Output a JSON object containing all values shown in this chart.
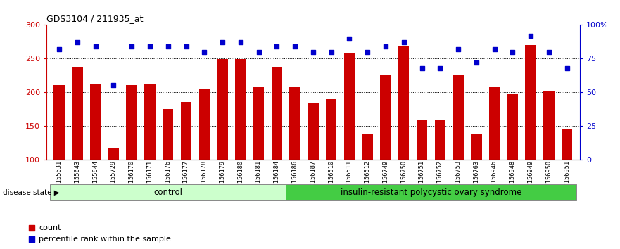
{
  "title": "GDS3104 / 211935_at",
  "samples": [
    "GSM155631",
    "GSM155643",
    "GSM155644",
    "GSM155729",
    "GSM156170",
    "GSM156171",
    "GSM156176",
    "GSM156177",
    "GSM156178",
    "GSM156179",
    "GSM156180",
    "GSM156181",
    "GSM156184",
    "GSM156186",
    "GSM156187",
    "GSM156510",
    "GSM156511",
    "GSM156512",
    "GSM156749",
    "GSM156750",
    "GSM156751",
    "GSM156752",
    "GSM156753",
    "GSM156763",
    "GSM156946",
    "GSM156948",
    "GSM156949",
    "GSM156950",
    "GSM156951"
  ],
  "counts": [
    210,
    238,
    211,
    117,
    210,
    213,
    175,
    185,
    205,
    249,
    249,
    208,
    238,
    207,
    184,
    190,
    257,
    138,
    225,
    269,
    158,
    159,
    225,
    137,
    207,
    198,
    270,
    202,
    145
  ],
  "percentiles": [
    82,
    87,
    84,
    55,
    84,
    84,
    84,
    84,
    80,
    87,
    87,
    80,
    84,
    84,
    80,
    80,
    90,
    80,
    84,
    87,
    68,
    68,
    82,
    72,
    82,
    80,
    92,
    80,
    68
  ],
  "n_control": 13,
  "ylim_left": [
    100,
    300
  ],
  "ylim_right": [
    0,
    100
  ],
  "yticks_left": [
    100,
    150,
    200,
    250,
    300
  ],
  "yticks_right": [
    0,
    25,
    50,
    75,
    100
  ],
  "bar_color": "#cc0000",
  "dot_color": "#0000cc",
  "control_color": "#ccffcc",
  "disease_color": "#44cc44",
  "control_label": "control",
  "disease_label": "insulin-resistant polycystic ovary syndrome",
  "legend_count": "count",
  "legend_pct": "percentile rank within the sample",
  "disease_state_label": "disease state"
}
